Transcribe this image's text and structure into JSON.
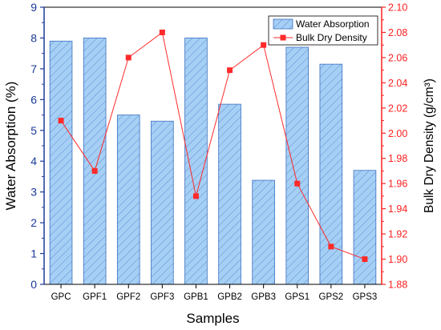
{
  "chart_data": {
    "type": "bar",
    "categories": [
      "GPC",
      "GPF1",
      "GPF2",
      "GPF3",
      "GPB1",
      "GPB2",
      "GPB3",
      "GPS1",
      "GPS2",
      "GPS3"
    ],
    "series": [
      {
        "name": "Water Absorption",
        "type": "bar",
        "axis": "left",
        "values": [
          7.9,
          8.0,
          5.5,
          5.3,
          8.0,
          5.85,
          3.38,
          7.7,
          7.15,
          3.7
        ],
        "color": "#9cc8f2"
      },
      {
        "name": "Bulk Dry Density",
        "type": "line",
        "axis": "right",
        "values": [
          2.01,
          1.97,
          2.06,
          2.08,
          1.95,
          2.05,
          2.07,
          1.96,
          1.91,
          1.9
        ],
        "color": "#ff2a2a"
      }
    ],
    "xlabel": "Samples",
    "ylabel": "Water Absorption (%)",
    "ylabel_right": "Bulk Dry Density (g/cm³)",
    "ylim": [
      0,
      9
    ],
    "ylim_right": [
      1.88,
      2.1
    ],
    "yticks": [
      "0",
      "1",
      "2",
      "3",
      "4",
      "5",
      "6",
      "7",
      "8",
      "9"
    ],
    "yticks_right": [
      "1.88",
      "1.90",
      "1.92",
      "1.94",
      "1.96",
      "1.98",
      "2.00",
      "2.02",
      "2.04",
      "2.06",
      "2.08",
      "2.10"
    ],
    "legend_position": "top-right",
    "grid": false,
    "colors": {
      "left_axis": "#1a3a9a",
      "right_axis": "#ff2020",
      "bar_fill": "#9cc8f2",
      "bar_edge": "#3a6fc0",
      "line": "#ff2a2a"
    }
  }
}
